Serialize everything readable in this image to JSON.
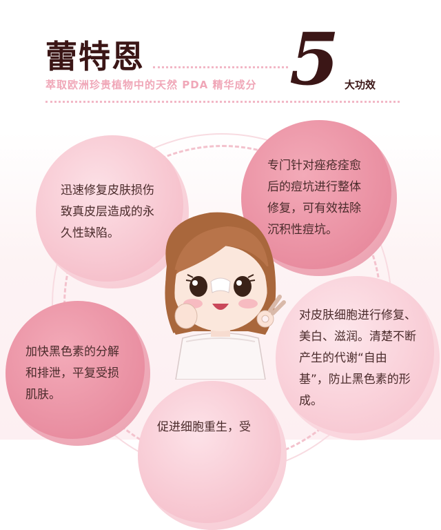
{
  "header": {
    "brand": "蕾特恩",
    "subtitle": "萃取欧洲珍贵植物中的天然 PDA 精华成分",
    "number": "5",
    "effects_label": "大功效"
  },
  "effects": [
    {
      "text": "迅速修复皮肤损伤致真皮层造成的永久性缺陷。"
    },
    {
      "text": "专门针对痤疮痊愈后的痘坑进行整体修复，可有效祛除沉积性痘坑。"
    },
    {
      "text": "加快黑色素的分解和排泄，平复受损肌肤。"
    },
    {
      "text": "对皮肤细胞进行修复、美白、滋润。清楚不断产生的代谢“自由基”，防止黑色素的形成。"
    },
    {
      "text": "促进细胞重生，受"
    }
  ],
  "colors": {
    "title": "#3b1616",
    "subtitle": "#f0a7b8",
    "bubble_dark": "#e88b9e",
    "bubble_light": "#f6c0cb"
  },
  "illustration": {
    "icon": "cartoon-girl-ok-gesture"
  }
}
